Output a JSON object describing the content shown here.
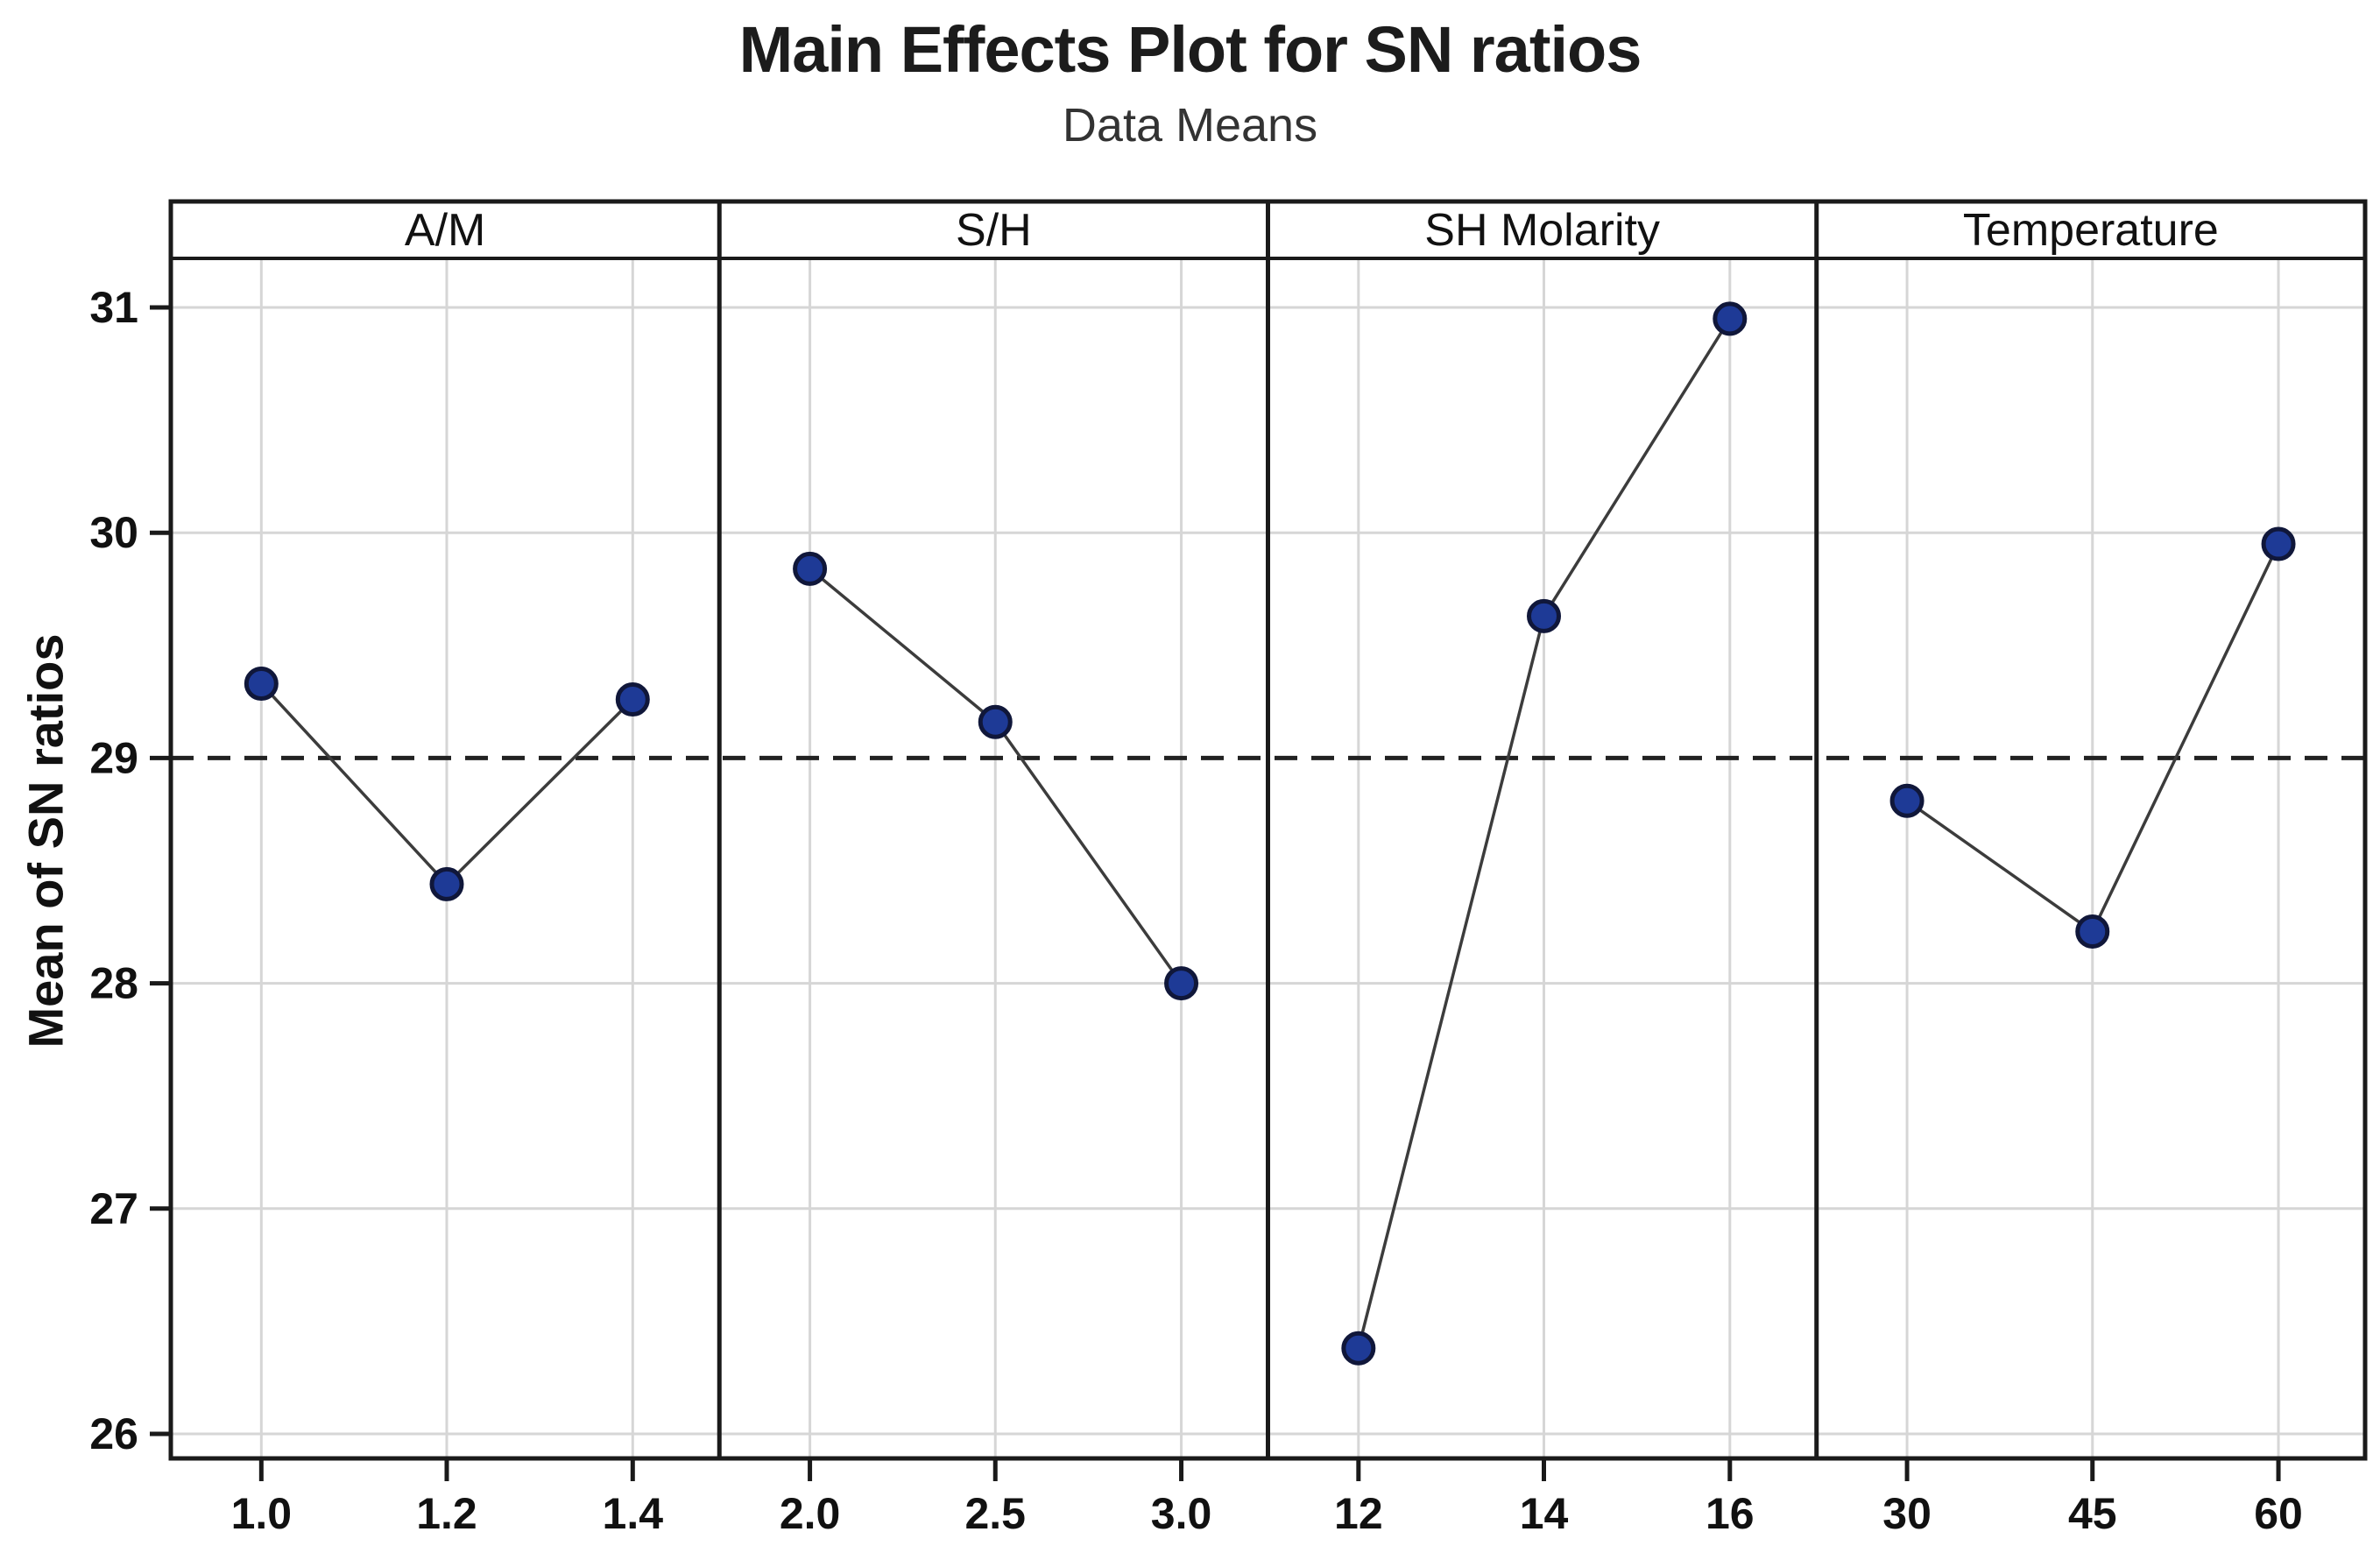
{
  "figure": {
    "title": "Main Effects Plot for SN ratios",
    "subtitle": "Data Means",
    "ylabel": "Mean of SN ratios"
  },
  "chart_data": {
    "type": "line",
    "title": "Main Effects Plot for SN ratios",
    "subtitle": "Data Means",
    "ylabel": "Mean of SN ratios",
    "xlabel": "",
    "ylim": [
      26,
      31
    ],
    "yticks": [
      26,
      27,
      28,
      29,
      30,
      31
    ],
    "grid": true,
    "legend": "none",
    "reference_line": 29,
    "panels": [
      {
        "label": "A/M",
        "categories": [
          "1.0",
          "1.2",
          "1.4"
        ],
        "values": [
          29.33,
          28.44,
          29.26
        ]
      },
      {
        "label": "S/H",
        "categories": [
          "2.0",
          "2.5",
          "3.0"
        ],
        "values": [
          29.84,
          29.16,
          28.0
        ]
      },
      {
        "label": "SH Molarity",
        "categories": [
          "12",
          "14",
          "16"
        ],
        "values": [
          26.38,
          29.63,
          30.95
        ]
      },
      {
        "label": "Temperature",
        "categories": [
          "30",
          "45",
          "60"
        ],
        "values": [
          28.81,
          28.23,
          29.95
        ]
      }
    ],
    "colors": {
      "marker_fill": "#1e3a96",
      "marker_stroke": "#10173a",
      "series_line": "#3c3c3c",
      "grid_line": "#d6d6d6",
      "frame": "#1a1a1a",
      "reference_line": "#222222",
      "background": "#ffffff"
    }
  }
}
